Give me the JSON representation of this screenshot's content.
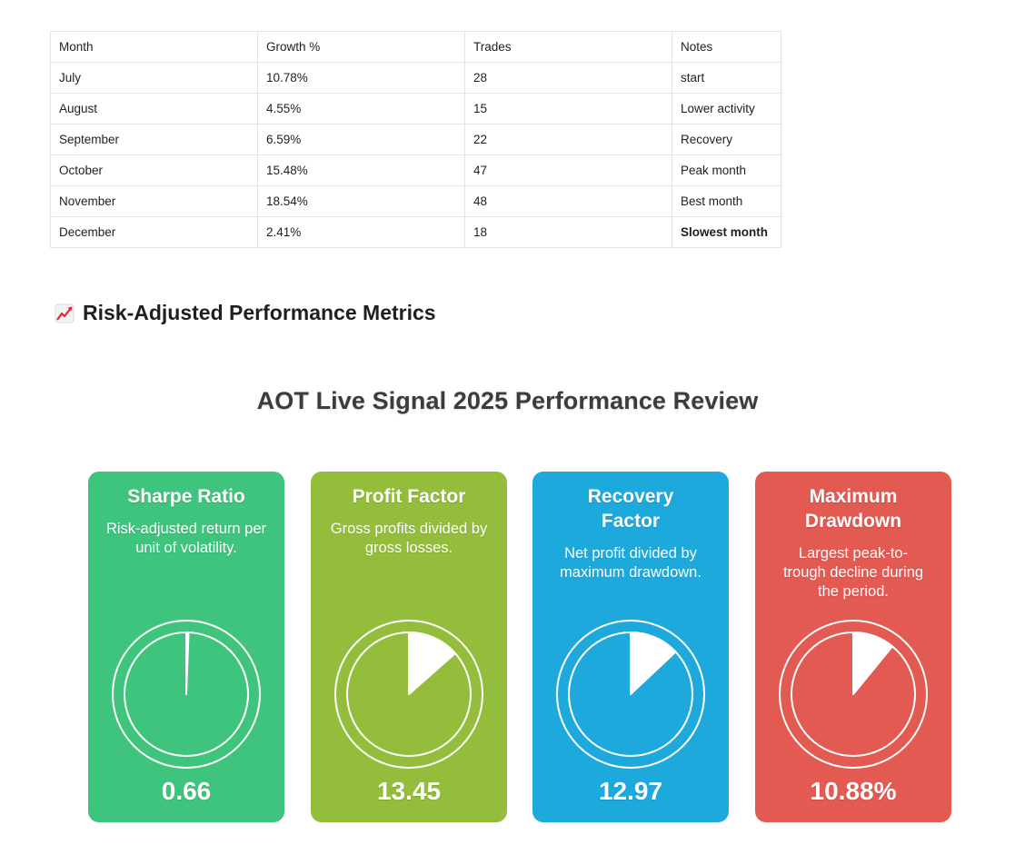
{
  "table": {
    "headers": [
      "Month",
      "Growth %",
      "Trades",
      "Notes"
    ],
    "rows": [
      [
        "July",
        "10.78%",
        "28",
        "start"
      ],
      [
        "August",
        "4.55%",
        "15",
        "Lower activity"
      ],
      [
        "September",
        "6.59%",
        "22",
        "Recovery"
      ],
      [
        "October",
        "15.48%",
        "47",
        "Peak month"
      ],
      [
        "November",
        "18.54%",
        "48",
        "Best month"
      ],
      [
        "December",
        "2.41%",
        "18",
        "Slowest month"
      ]
    ]
  },
  "section": {
    "icon": "chart-increasing-emoji",
    "heading": "Risk-Adjusted Performance Metrics"
  },
  "infographic": {
    "title": "AOT Live Signal 2025 Performance Review",
    "cards": [
      {
        "title": "Sharpe Ratio",
        "description": "Risk-adjusted return per unit of volatility.",
        "value": "0.66",
        "gauge_fraction": 0.006,
        "color": "#3ec47c"
      },
      {
        "title": "Profit Factor",
        "description": "Gross profits divided by gross losses.",
        "value": "13.45",
        "gauge_fraction": 0.135,
        "color": "#93bd3a"
      },
      {
        "title": "Recovery Factor",
        "description": "Net profit divided by maximum drawdown.",
        "value": "12.97",
        "gauge_fraction": 0.13,
        "color": "#1ea9dd"
      },
      {
        "title": "Maximum Drawdown",
        "description": "Largest peak-to-trough decline during the period.",
        "value": "10.88%",
        "gauge_fraction": 0.109,
        "color": "#e35a52"
      }
    ]
  }
}
